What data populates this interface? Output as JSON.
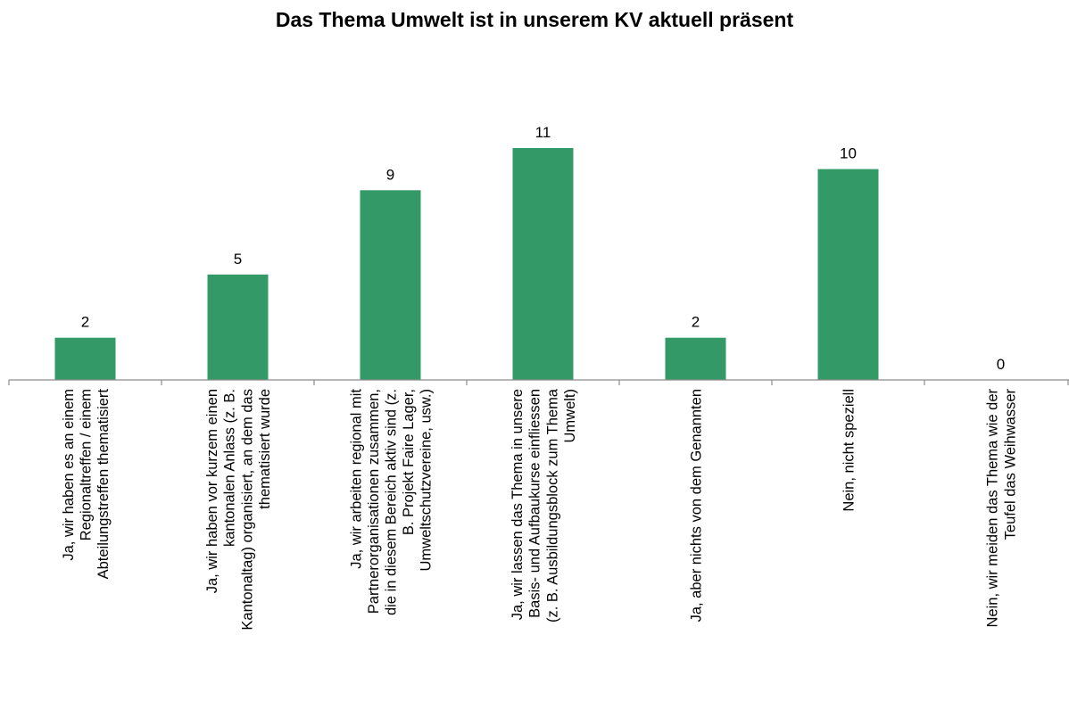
{
  "chart_data": {
    "type": "bar",
    "title": "Das Thema Umwelt ist in unserem KV aktuell präsent",
    "xlabel": "",
    "ylabel": "",
    "ylim": [
      0,
      11
    ],
    "grid": false,
    "legend": "none",
    "bar_color": "#339966",
    "axis_color": "#8c8c8c",
    "categories": [
      [
        "Ja, wir haben es an einem",
        "Regionaltreffen / einem",
        "Abteilungstreffen thematisiert"
      ],
      [
        "Ja, wir haben vor kurzem einen",
        "kantonalen Anlass (z. B.",
        "Kantonaltag) organisiert, an dem das",
        "thematisiert wurde"
      ],
      [
        "Ja, wir arbeiten regional mit",
        "Partnerorganisationen zusammen,",
        "die in diesem Bereich aktiv sind (z.",
        "B. Projekt Faire Lager,",
        "Umweltschutzvereine, usw.)"
      ],
      [
        "Ja, wir lassen das Thema in unsere",
        "Basis- und Aufbaukurse einfliessen",
        "(z. B. Ausbildungsblock zum Thema",
        "Umwelt)"
      ],
      [
        "Ja, aber nichts von dem Genannten"
      ],
      [
        "Nein, nicht speziell"
      ],
      [
        "Nein, wir meiden das Thema wie der",
        "Teufel das Weihwasser"
      ]
    ],
    "values": [
      2,
      5,
      9,
      11,
      2,
      10,
      0
    ],
    "data_labels": [
      "2",
      "5",
      "9",
      "11",
      "2",
      "10",
      "0"
    ]
  }
}
